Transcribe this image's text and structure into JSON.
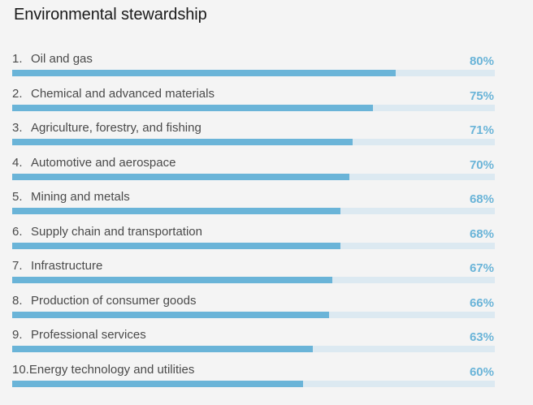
{
  "title": "Environmental stewardship",
  "colors": {
    "bar": "#6ab4d8",
    "track": "#dce9f1",
    "value_text": "#6ab4d8"
  },
  "chart_data": {
    "type": "bar",
    "orientation": "horizontal",
    "title": "Environmental stewardship",
    "ylim": [
      0,
      100
    ],
    "categories": [
      "Oil and gas",
      "Chemical and advanced materials",
      "Agriculture, forestry, and fishing",
      "Automotive and aerospace",
      "Mining and metals",
      "Supply chain and transportation",
      "Infrastructure",
      "Production of consumer goods",
      "Professional services",
      "Energy technology and utilities"
    ],
    "ranks": [
      "1.",
      "2.",
      "3.",
      "4.",
      "5.",
      "6.",
      "7.",
      "8.",
      "9.",
      "10."
    ],
    "values": [
      80,
      75,
      71,
      70,
      68,
      68,
      67,
      66,
      63,
      60
    ],
    "value_labels": [
      "80%",
      "75%",
      "71%",
      "70%",
      "68%",
      "68%",
      "67%",
      "66%",
      "63%",
      "60%"
    ],
    "fill_fractions": [
      0.795,
      0.748,
      0.706,
      0.699,
      0.68,
      0.68,
      0.663,
      0.656,
      0.623,
      0.603
    ]
  }
}
